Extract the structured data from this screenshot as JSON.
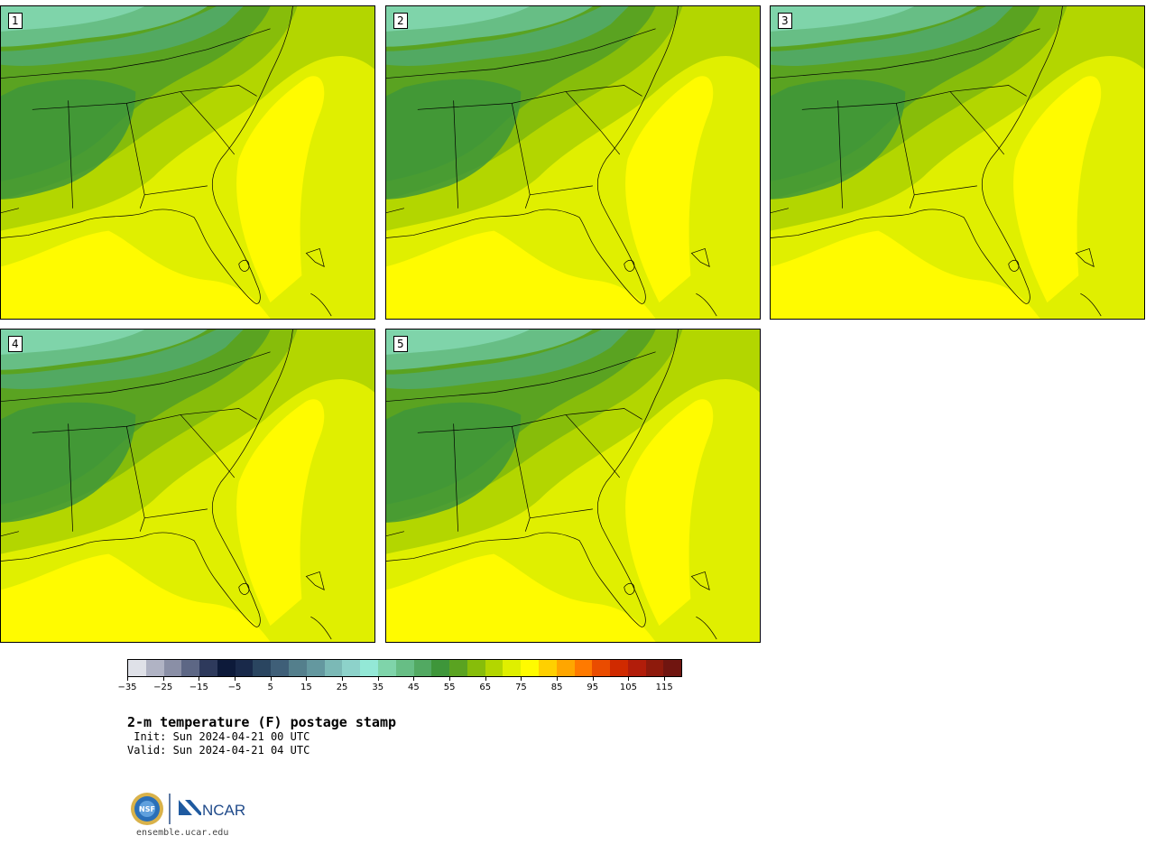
{
  "panels": [
    {
      "label": "1"
    },
    {
      "label": "2"
    },
    {
      "label": "3"
    },
    {
      "label": "4"
    },
    {
      "label": "5"
    }
  ],
  "colorbar": {
    "colors": [
      "#dfe1e8",
      "#b0b3c4",
      "#8a8fa6",
      "#5d6785",
      "#2e3a5c",
      "#0d1a3a",
      "#19294a",
      "#2a4560",
      "#3f5f78",
      "#547f8c",
      "#64989f",
      "#7bb9b6",
      "#8dd2ca",
      "#93e8d6",
      "#7fd4aa",
      "#67be85",
      "#52a962",
      "#3e963a",
      "#5aa321",
      "#87bd0a",
      "#b3d600",
      "#dfef00",
      "#fffb00",
      "#ffd000",
      "#ffa600",
      "#ff7a00",
      "#ea4c00",
      "#d02a00",
      "#b21d0a",
      "#8e1a0c",
      "#701510"
    ],
    "tick_labels": [
      "−35",
      "−25",
      "−15",
      "−5",
      "5",
      "15",
      "25",
      "35",
      "45",
      "55",
      "65",
      "75",
      "85",
      "95",
      "105",
      "115"
    ]
  },
  "caption": {
    "title": "2-m temperature (F) postage stamp",
    "init": " Init: Sun 2024-04-21 00 UTC",
    "valid": "Valid: Sun 2024-04-21 04 UTC"
  },
  "logo": {
    "org1": "NSF",
    "org2": "NCAR"
  },
  "footer": {
    "url": "ensemble.ucar.edu"
  }
}
